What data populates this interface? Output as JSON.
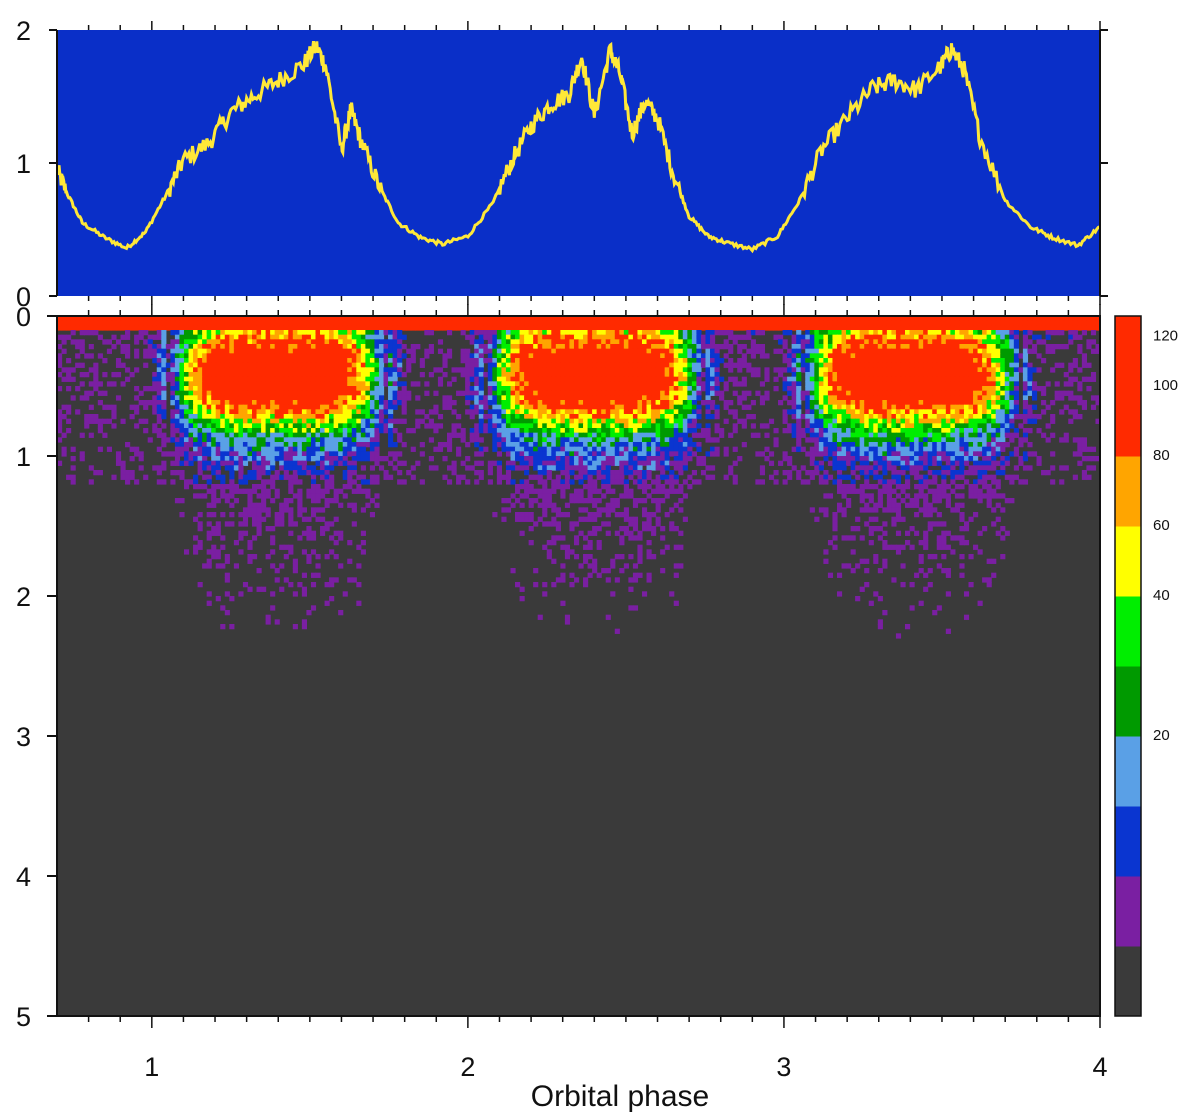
{
  "chart_data": [
    {
      "type": "line",
      "panel": "top",
      "ylim": [
        0,
        2
      ],
      "xlim": [
        0.7,
        4.0
      ],
      "yticks": [
        "0",
        "1",
        "2"
      ],
      "background": "#0a2fc8",
      "line_color": "#ffe838",
      "x": [
        0.7,
        0.73,
        0.78,
        0.85,
        0.92,
        0.98,
        1.05,
        1.1,
        1.18,
        1.25,
        1.32,
        1.4,
        1.48,
        1.52,
        1.55,
        1.6,
        1.63,
        1.66,
        1.72,
        1.78,
        1.85,
        1.92,
        2.0,
        2.08,
        2.14,
        2.2,
        2.26,
        2.32,
        2.36,
        2.4,
        2.45,
        2.48,
        2.52,
        2.56,
        2.6,
        2.65,
        2.7,
        2.76,
        2.82,
        2.9,
        2.98,
        3.05,
        3.12,
        3.2,
        3.28,
        3.35,
        3.42,
        3.5,
        3.53,
        3.57,
        3.62,
        3.7,
        3.78,
        3.85,
        3.93,
        4.0
      ],
      "y": [
        0.95,
        0.78,
        0.55,
        0.44,
        0.36,
        0.48,
        0.78,
        1.02,
        1.15,
        1.38,
        1.5,
        1.62,
        1.74,
        1.88,
        1.73,
        1.1,
        1.4,
        1.18,
        0.82,
        0.55,
        0.44,
        0.39,
        0.45,
        0.7,
        1.02,
        1.28,
        1.44,
        1.52,
        1.8,
        1.36,
        1.85,
        1.68,
        1.22,
        1.46,
        1.34,
        0.92,
        0.6,
        0.45,
        0.4,
        0.35,
        0.45,
        0.72,
        1.1,
        1.34,
        1.56,
        1.62,
        1.55,
        1.74,
        1.86,
        1.7,
        1.2,
        0.72,
        0.52,
        0.44,
        0.38,
        0.52
      ]
    },
    {
      "type": "heatmap",
      "panel": "bottom",
      "ylim": [
        0,
        5
      ],
      "xlim": [
        0.7,
        4.0
      ],
      "yticks": [
        "0",
        "1",
        "2",
        "3",
        "4",
        "5"
      ],
      "xticks": [
        "1",
        "2",
        "3",
        "4"
      ],
      "xlabel": "Orbital phase",
      "ylabel": "",
      "colorbar": {
        "levels": [
          {
            "color": "#3a3a3a",
            "label": ""
          },
          {
            "color": "#7a1fa2",
            "label": ""
          },
          {
            "color": "#0a35d0",
            "label": ""
          },
          {
            "color": "#5aa0e6",
            "label": "20"
          },
          {
            "color": "#009a00",
            "label": ""
          },
          {
            "color": "#00ee00",
            "label": "40"
          },
          {
            "color": "#ffff00",
            "label": "60"
          },
          {
            "color": "#ffa500",
            "label": "80"
          },
          {
            "color": "#ff2a00",
            "label": "100"
          },
          {
            "color": "#ff2a00",
            "label": "120"
          }
        ]
      },
      "bright_bands": [
        {
          "x_start": 1.05,
          "x_end": 1.75,
          "peak_y": 0.45
        },
        {
          "x_start": 2.05,
          "x_end": 2.75,
          "peak_y": 0.45
        },
        {
          "x_start": 3.05,
          "x_end": 3.75,
          "peak_y": 0.45
        }
      ]
    }
  ]
}
